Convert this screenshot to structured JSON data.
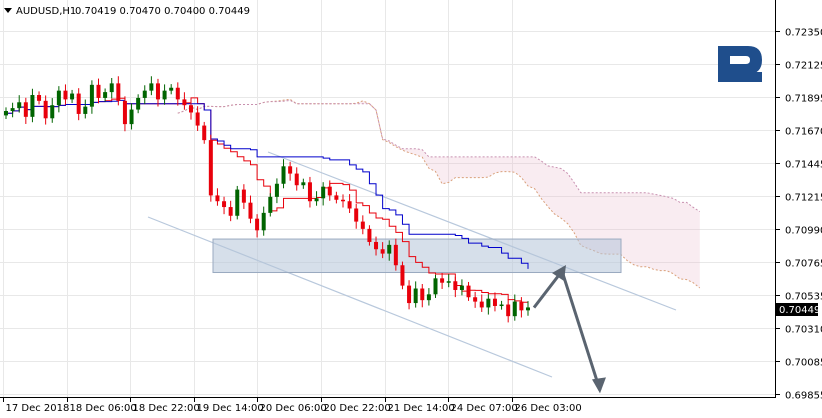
{
  "header": {
    "symbol": "AUDUSD,H1",
    "ohlc": "0.70419 0.70470 0.70400 0.70449"
  },
  "current_price_label": "0.70449",
  "colors": {
    "grid": "#e8e8e8",
    "bear": "#e8000b",
    "bull": "#006400",
    "tenkan": "#e8000b",
    "kijun": "#0000cc",
    "cloud": "#d9a07a",
    "channel": "#b8c8dc",
    "zone": "#b4c4d8",
    "arrow": "#5a6470",
    "logo": "#1f4e8c"
  },
  "logo_icon": "roboforex-logo-icon",
  "chart_data": {
    "type": "candlestick",
    "title": "",
    "ylim": [
      0.69855,
      0.72475
    ],
    "y_ticks": [
      "0.72350",
      "0.72125",
      "0.71895",
      "0.71670",
      "0.71445",
      "0.71215",
      "0.70990",
      "0.70765",
      "0.70535",
      "0.70310",
      "0.70085",
      "0.69855"
    ],
    "x_ticks": [
      "17 Dec 2018",
      "18 Dec 06:00",
      "18 Dec 22:00",
      "19 Dec 14:00",
      "20 Dec 06:00",
      "20 Dec 22:00",
      "21 Dec 14:00",
      "24 Dec 07:00",
      "26 Dec 03:00"
    ],
    "candles_close": [
      0.718,
      0.7182,
      0.7186,
      0.7176,
      0.7191,
      0.7187,
      0.7175,
      0.7184,
      0.7194,
      0.7188,
      0.7192,
      0.7178,
      0.7183,
      0.7198,
      0.7189,
      0.7193,
      0.7199,
      0.7187,
      0.7171,
      0.7181,
      0.7189,
      0.7194,
      0.7199,
      0.7188,
      0.7194,
      0.7196,
      0.7188,
      0.7184,
      0.7179,
      0.717,
      0.716,
      0.7122,
      0.7118,
      0.7114,
      0.7108,
      0.7126,
      0.7117,
      0.7106,
      0.7098,
      0.711,
      0.7121,
      0.713,
      0.7142,
      0.7137,
      0.7129,
      0.7131,
      0.7118,
      0.712,
      0.7128,
      0.7122,
      0.7119,
      0.7118,
      0.7113,
      0.7104,
      0.7099,
      0.709,
      0.7085,
      0.7082,
      0.7088,
      0.7074,
      0.706,
      0.7048,
      0.7058,
      0.705,
      0.7054,
      0.7065,
      0.7062,
      0.7063,
      0.7057,
      0.706,
      0.7052,
      0.7049,
      0.7045,
      0.7051,
      0.7046,
      0.7047,
      0.7039,
      0.7049,
      0.7043,
      0.7045
    ],
    "current_price": 0.70449,
    "zone": {
      "y_low": 0.7069,
      "y_high": 0.7092
    },
    "forecast": [
      0.70449,
      0.707,
      0.6988
    ]
  }
}
